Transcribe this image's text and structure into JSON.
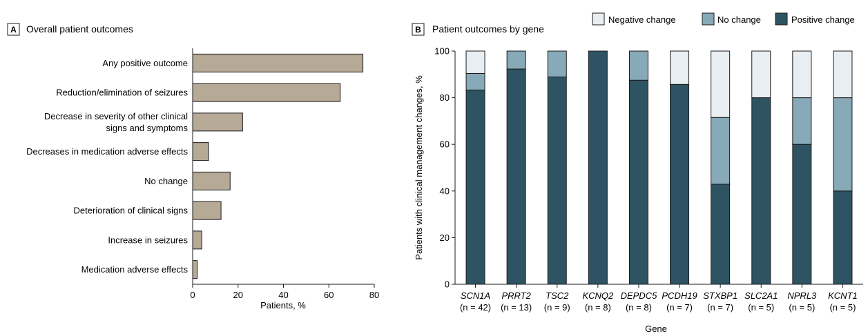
{
  "panel_a": {
    "badge": "A",
    "title": "Overall patient outcomes",
    "xlabel": "Patients, %",
    "bar_color": "#b6a996"
  },
  "panel_b": {
    "badge": "B",
    "title": "Patient outcomes by gene",
    "xlabel": "Gene",
    "ylabel": "Patients with clinical management changes, %",
    "legend": [
      {
        "label": "Negative change",
        "color": "#e9eef2"
      },
      {
        "label": "No change",
        "color": "#87a9b8"
      },
      {
        "label": "Positive change",
        "color": "#2e5463"
      }
    ]
  },
  "chart_data": [
    {
      "type": "bar",
      "orientation": "horizontal",
      "title": "Overall patient outcomes",
      "xlabel": "Patients, %",
      "categories": [
        "Any positive outcome",
        "Reduction/elimination of seizures",
        "Decrease in severity of other clinical signs and symptoms",
        "Decreases in medication adverse effects",
        "No change",
        "Deterioration of clinical signs",
        "Increase in seizures",
        "Medication adverse effects"
      ],
      "values": [
        75,
        65,
        22,
        7,
        16.5,
        12.5,
        4,
        2
      ],
      "xlim": [
        0,
        80
      ],
      "xticks": [
        "0",
        "20",
        "40",
        "60",
        "80"
      ]
    },
    {
      "type": "bar",
      "stacked": true,
      "title": "Patient outcomes by gene",
      "xlabel": "Gene",
      "ylabel": "Patients with clinical management changes, %",
      "categories": [
        "SCN1A",
        "PRRT2",
        "TSC2",
        "KCNQ2",
        "DEPDC5",
        "PCDH19",
        "STXBP1",
        "SLC2A1",
        "NPRL3",
        "KCNT1"
      ],
      "counts": [
        "(n = 42)",
        "(n = 13)",
        "(n = 9)",
        "(n = 8)",
        "(n = 8)",
        "(n = 7)",
        "(n = 7)",
        "(n = 5)",
        "(n = 5)",
        "(n = 5)"
      ],
      "series": [
        {
          "name": "Positive change",
          "values": [
            83.3,
            92.3,
            88.9,
            100,
            87.5,
            85.7,
            42.9,
            80,
            60,
            40
          ]
        },
        {
          "name": "No change",
          "values": [
            7.1,
            7.7,
            11.1,
            0,
            12.5,
            0,
            28.6,
            0,
            20,
            40
          ]
        },
        {
          "name": "Negative change",
          "values": [
            9.6,
            0,
            0,
            0,
            0,
            14.3,
            28.5,
            20,
            20,
            20
          ]
        }
      ],
      "ylim": [
        0,
        100
      ],
      "yticks": [
        "0",
        "20",
        "40",
        "60",
        "80",
        "100"
      ],
      "legend_position": "top-right"
    }
  ]
}
